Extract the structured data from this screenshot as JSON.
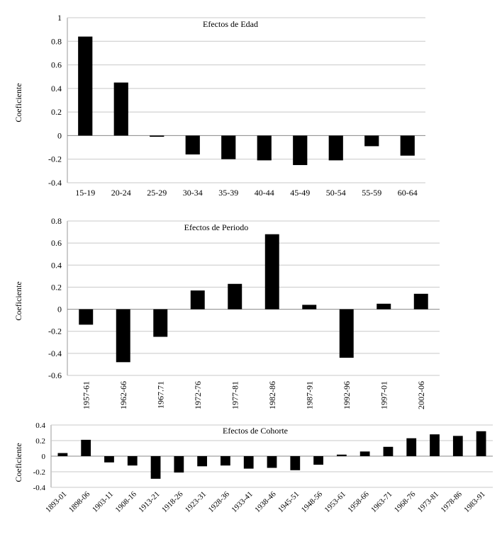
{
  "chart_data": [
    {
      "type": "bar",
      "title": "Efectos de Edad",
      "ylabel": "Coeficiente",
      "xlabel": "",
      "ylim": [
        -0.4,
        1
      ],
      "yticks": [
        -0.4,
        -0.2,
        0,
        0.2,
        0.4,
        0.6,
        0.8,
        1
      ],
      "ytick_labels": [
        "-0.4",
        "-0.2",
        "0",
        "0.2",
        "0.4",
        "0.6",
        "0.8",
        "1"
      ],
      "categories": [
        "15-19",
        "20-24",
        "25-29",
        "30-34",
        "35-39",
        "40-44",
        "45-49",
        "50-54",
        "55-59",
        "60-64"
      ],
      "values": [
        0.84,
        0.45,
        -0.01,
        -0.16,
        -0.2,
        -0.21,
        -0.25,
        -0.21,
        -0.09,
        -0.17
      ],
      "grid": true,
      "xtick_rotation": 0,
      "color": "#000000"
    },
    {
      "type": "bar",
      "title": "Efectos de Periodo",
      "ylabel": "Coeficiente",
      "xlabel": "",
      "ylim": [
        -0.6,
        0.8
      ],
      "yticks": [
        -0.6,
        -0.4,
        -0.2,
        0,
        0.2,
        0.4,
        0.6,
        0.8
      ],
      "ytick_labels": [
        "-0.6",
        "-0.4",
        "-0.2",
        "0",
        "0.2",
        "0.4",
        "0.6",
        "0.8"
      ],
      "categories": [
        "1957-61",
        "1962-66",
        "1967.71",
        "1972-76",
        "1977-81",
        "1982-86",
        "1987-91",
        "1992-96",
        "1997-01",
        "2002-06"
      ],
      "values": [
        -0.14,
        -0.48,
        -0.25,
        0.17,
        0.23,
        0.68,
        0.04,
        -0.44,
        0.05,
        0.14
      ],
      "grid": true,
      "xtick_rotation": -90,
      "color": "#000000"
    },
    {
      "type": "bar",
      "title": "Efectos de Cohorte",
      "ylabel": "Coeficiente",
      "xlabel": "",
      "ylim": [
        -0.4,
        0.4
      ],
      "yticks": [
        -0.4,
        -0.2,
        0,
        0.2,
        0.4
      ],
      "ytick_labels": [
        "-0.4",
        "-0.2",
        "0",
        "0.2",
        "0.4"
      ],
      "categories": [
        "1893-01",
        "1898-06",
        "1903-11",
        "1908-16",
        "1913-21",
        "1918-26",
        "1923-31",
        "1928-36",
        "1933-41",
        "1938-46",
        "1945-51",
        "1948-56",
        "1953-61",
        "1958-66",
        "1963-71",
        "1968-76",
        "1973-81",
        "1978-86",
        "1983-91"
      ],
      "values": [
        0.04,
        0.21,
        -0.08,
        -0.12,
        -0.29,
        -0.21,
        -0.13,
        -0.12,
        -0.16,
        -0.15,
        -0.18,
        -0.11,
        0.02,
        0.06,
        0.12,
        0.23,
        0.28,
        0.26,
        0.32
      ],
      "grid": true,
      "xtick_rotation": -45,
      "color": "#000000"
    }
  ]
}
